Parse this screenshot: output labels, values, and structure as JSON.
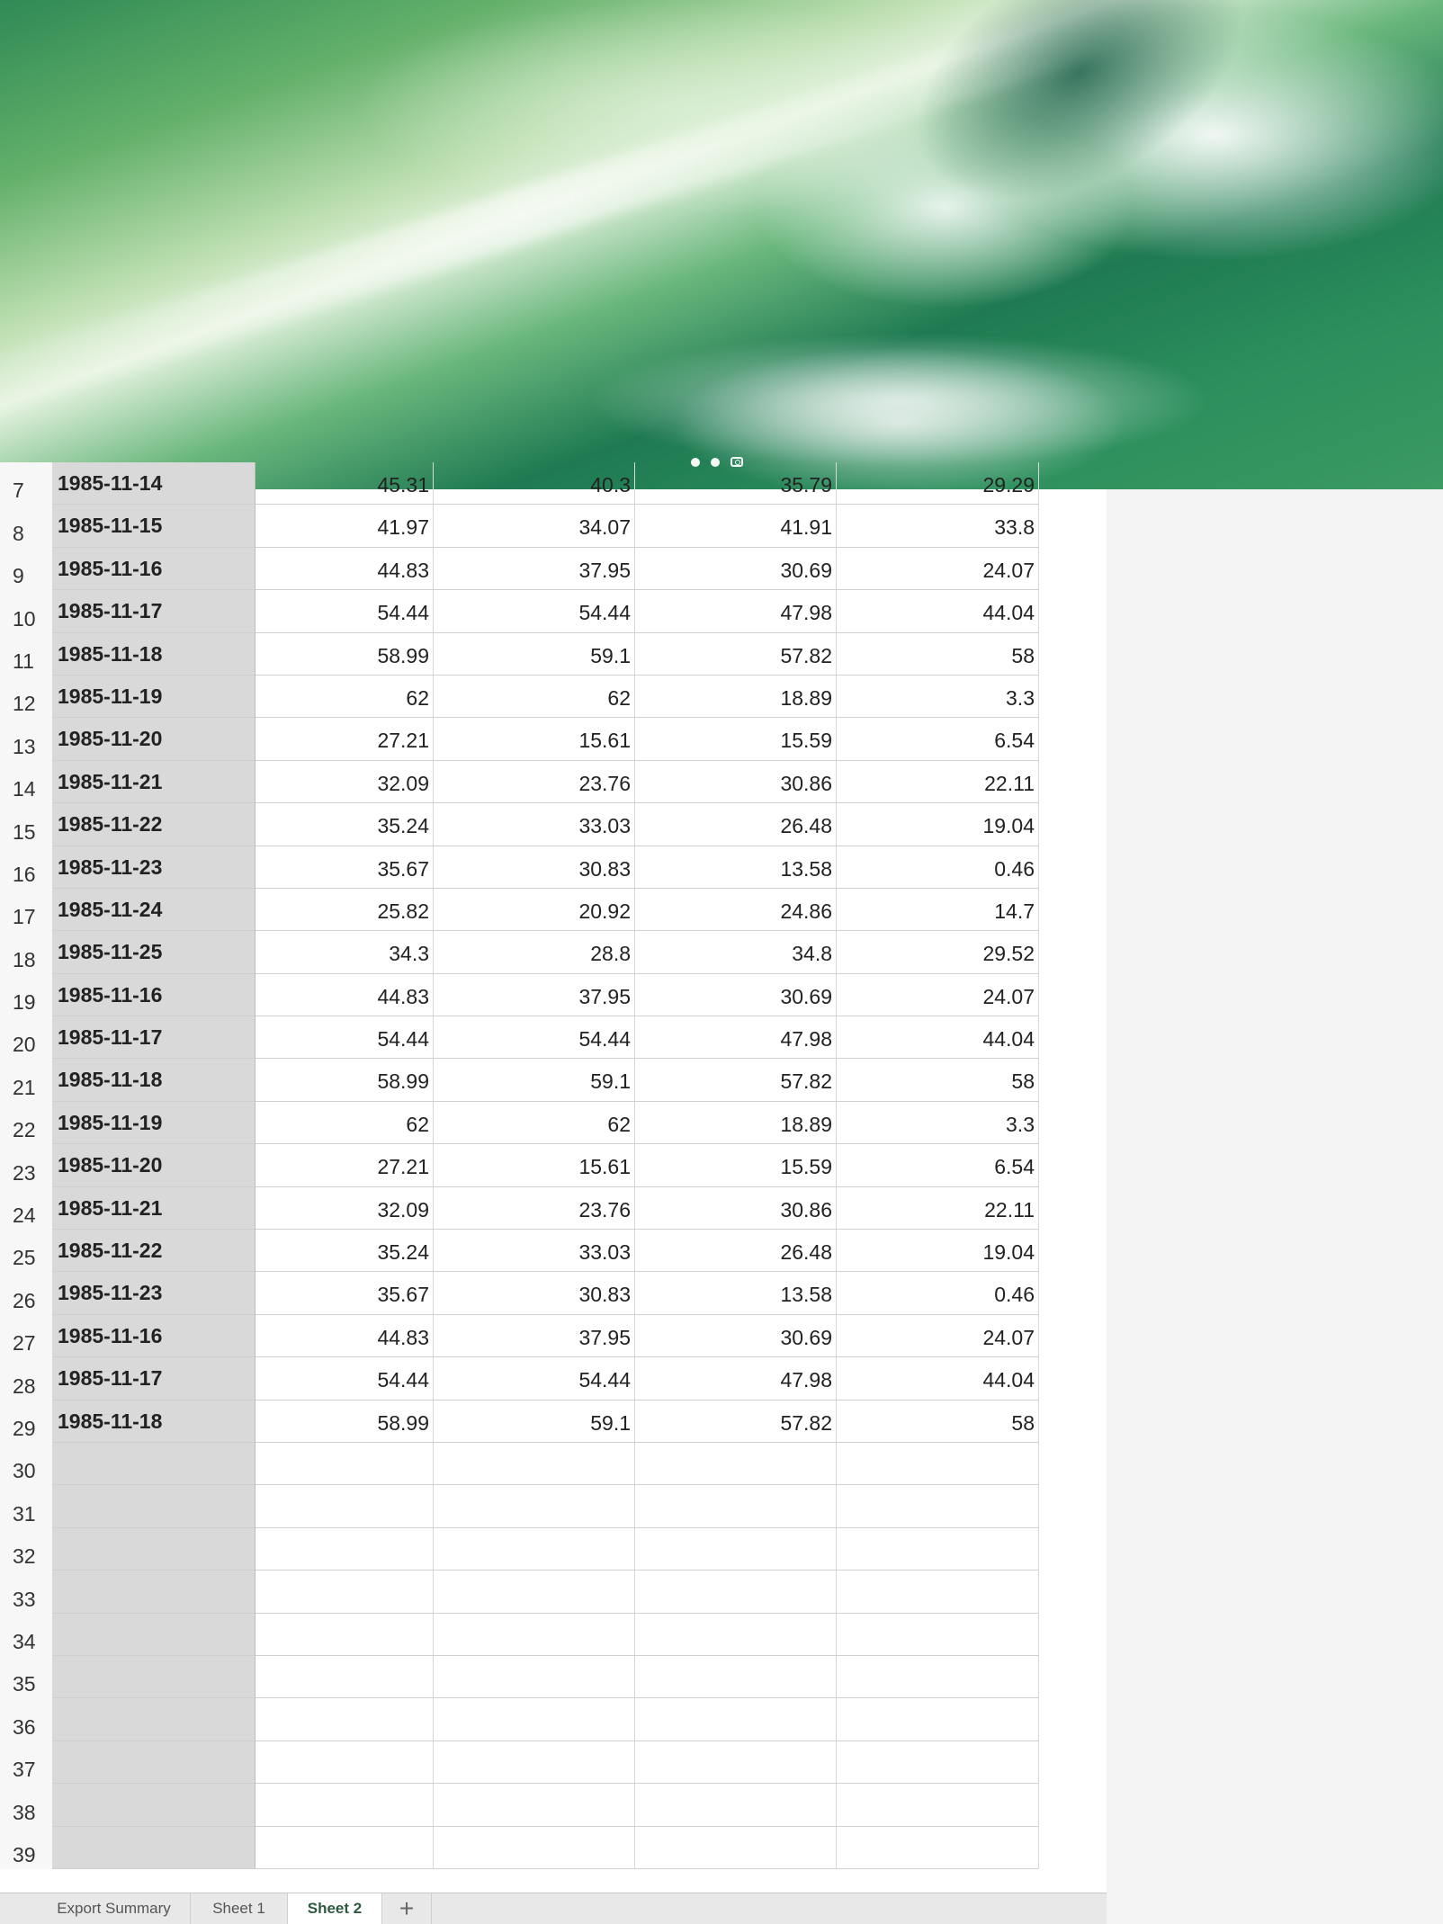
{
  "wallpaper": {
    "page_dots": 2,
    "camera_icon": "camera-icon"
  },
  "sheet": {
    "rows": [
      {
        "n": "7",
        "date": "1985-11-14",
        "v": [
          "45.31",
          "40.3",
          "35.79",
          "29.29"
        ]
      },
      {
        "n": "8",
        "date": "1985-11-15",
        "v": [
          "41.97",
          "34.07",
          "41.91",
          "33.8"
        ]
      },
      {
        "n": "9",
        "date": "1985-11-16",
        "v": [
          "44.83",
          "37.95",
          "30.69",
          "24.07"
        ]
      },
      {
        "n": "10",
        "date": "1985-11-17",
        "v": [
          "54.44",
          "54.44",
          "47.98",
          "44.04"
        ]
      },
      {
        "n": "11",
        "date": "1985-11-18",
        "v": [
          "58.99",
          "59.1",
          "57.82",
          "58"
        ]
      },
      {
        "n": "12",
        "date": "1985-11-19",
        "v": [
          "62",
          "62",
          "18.89",
          "3.3"
        ]
      },
      {
        "n": "13",
        "date": "1985-11-20",
        "v": [
          "27.21",
          "15.61",
          "15.59",
          "6.54"
        ]
      },
      {
        "n": "14",
        "date": "1985-11-21",
        "v": [
          "32.09",
          "23.76",
          "30.86",
          "22.11"
        ]
      },
      {
        "n": "15",
        "date": "1985-11-22",
        "v": [
          "35.24",
          "33.03",
          "26.48",
          "19.04"
        ]
      },
      {
        "n": "16",
        "date": "1985-11-23",
        "v": [
          "35.67",
          "30.83",
          "13.58",
          "0.46"
        ]
      },
      {
        "n": "17",
        "date": "1985-11-24",
        "v": [
          "25.82",
          "20.92",
          "24.86",
          "14.7"
        ]
      },
      {
        "n": "18",
        "date": "1985-11-25",
        "v": [
          "34.3",
          "28.8",
          "34.8",
          "29.52"
        ]
      },
      {
        "n": "19",
        "date": "1985-11-16",
        "v": [
          "44.83",
          "37.95",
          "30.69",
          "24.07"
        ]
      },
      {
        "n": "20",
        "date": "1985-11-17",
        "v": [
          "54.44",
          "54.44",
          "47.98",
          "44.04"
        ]
      },
      {
        "n": "21",
        "date": "1985-11-18",
        "v": [
          "58.99",
          "59.1",
          "57.82",
          "58"
        ]
      },
      {
        "n": "22",
        "date": "1985-11-19",
        "v": [
          "62",
          "62",
          "18.89",
          "3.3"
        ]
      },
      {
        "n": "23",
        "date": "1985-11-20",
        "v": [
          "27.21",
          "15.61",
          "15.59",
          "6.54"
        ]
      },
      {
        "n": "24",
        "date": "1985-11-21",
        "v": [
          "32.09",
          "23.76",
          "30.86",
          "22.11"
        ]
      },
      {
        "n": "25",
        "date": "1985-11-22",
        "v": [
          "35.24",
          "33.03",
          "26.48",
          "19.04"
        ]
      },
      {
        "n": "26",
        "date": "1985-11-23",
        "v": [
          "35.67",
          "30.83",
          "13.58",
          "0.46"
        ]
      },
      {
        "n": "27",
        "date": "1985-11-16",
        "v": [
          "44.83",
          "37.95",
          "30.69",
          "24.07"
        ]
      },
      {
        "n": "28",
        "date": "1985-11-17",
        "v": [
          "54.44",
          "54.44",
          "47.98",
          "44.04"
        ]
      },
      {
        "n": "29",
        "date": "1985-11-18",
        "v": [
          "58.99",
          "59.1",
          "57.82",
          "58"
        ]
      },
      {
        "n": "30",
        "date": "",
        "v": [
          "",
          "",
          "",
          ""
        ]
      },
      {
        "n": "31",
        "date": "",
        "v": [
          "",
          "",
          "",
          ""
        ]
      },
      {
        "n": "32",
        "date": "",
        "v": [
          "",
          "",
          "",
          ""
        ]
      },
      {
        "n": "33",
        "date": "",
        "v": [
          "",
          "",
          "",
          ""
        ]
      },
      {
        "n": "34",
        "date": "",
        "v": [
          "",
          "",
          "",
          ""
        ]
      },
      {
        "n": "35",
        "date": "",
        "v": [
          "",
          "",
          "",
          ""
        ]
      },
      {
        "n": "36",
        "date": "",
        "v": [
          "",
          "",
          "",
          ""
        ]
      },
      {
        "n": "37",
        "date": "",
        "v": [
          "",
          "",
          "",
          ""
        ]
      },
      {
        "n": "38",
        "date": "",
        "v": [
          "",
          "",
          "",
          ""
        ]
      },
      {
        "n": "39",
        "date": "",
        "v": [
          "",
          "",
          "",
          ""
        ]
      }
    ]
  },
  "tabs": {
    "export_summary": "Export Summary",
    "sheet1": "Sheet 1",
    "sheet2": "Sheet 2",
    "add": "+",
    "active": "Sheet 2"
  }
}
